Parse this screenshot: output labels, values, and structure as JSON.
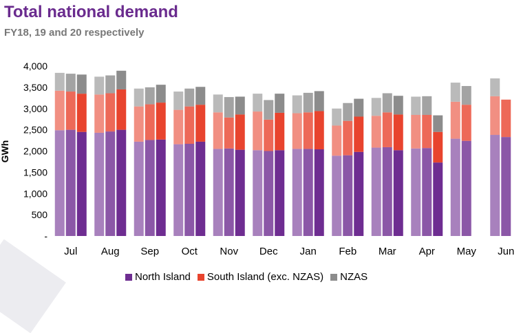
{
  "title": "Total national demand",
  "subtitle": "FY18, 19 and 20 respectively",
  "colors": {
    "north_island": "#6e2d91",
    "south_island": "#e8442e",
    "nzas": "#8c8c8c"
  },
  "chart_data": {
    "type": "bar",
    "stacked": true,
    "ylabel": "GWh",
    "ylim": [
      0,
      4000
    ],
    "yticks": [
      "-",
      "500",
      "1,000",
      "1,500",
      "2,000",
      "2,500",
      "3,000",
      "3,500",
      "4,000"
    ],
    "categories": [
      "Jul",
      "Aug",
      "Sep",
      "Oct",
      "Nov",
      "Dec",
      "Jan",
      "Feb",
      "Mar",
      "Apr",
      "May",
      "Jun"
    ],
    "years": [
      "FY18",
      "FY19",
      "FY20"
    ],
    "legend": [
      "North Island",
      "South Island (exc. NZAS)",
      "NZAS"
    ],
    "series": [
      {
        "name": "North Island",
        "values": [
          [
            2490,
            2500,
            2450
          ],
          [
            2430,
            2460,
            2500
          ],
          [
            2220,
            2260,
            2270
          ],
          [
            2160,
            2170,
            2220
          ],
          [
            2050,
            2060,
            2030
          ],
          [
            2020,
            2000,
            2020
          ],
          [
            2050,
            2050,
            2040
          ],
          [
            1890,
            1900,
            1980
          ],
          [
            2080,
            2090,
            2020
          ],
          [
            2060,
            2070,
            1730
          ],
          [
            2290,
            2240,
            null
          ],
          [
            2380,
            2330,
            null
          ]
        ]
      },
      {
        "name": "South Island (exc. NZAS)",
        "values": [
          [
            930,
            900,
            900
          ],
          [
            900,
            900,
            950
          ],
          [
            830,
            840,
            870
          ],
          [
            810,
            880,
            870
          ],
          [
            860,
            730,
            830
          ],
          [
            910,
            740,
            880
          ],
          [
            840,
            860,
            900
          ],
          [
            710,
            810,
            830
          ],
          [
            750,
            820,
            840
          ],
          [
            790,
            780,
            720
          ],
          [
            870,
            850,
            null
          ],
          [
            910,
            880,
            null
          ]
        ]
      },
      {
        "name": "NZAS",
        "values": [
          [
            420,
            420,
            450
          ],
          [
            420,
            420,
            440
          ],
          [
            420,
            400,
            420
          ],
          [
            430,
            420,
            420
          ],
          [
            420,
            480,
            420
          ],
          [
            420,
            460,
            450
          ],
          [
            420,
            460,
            470
          ],
          [
            400,
            420,
            420
          ],
          [
            420,
            450,
            440
          ],
          [
            430,
            440,
            390
          ],
          [
            450,
            440,
            null
          ],
          [
            420,
            0,
            null
          ]
        ]
      }
    ]
  }
}
